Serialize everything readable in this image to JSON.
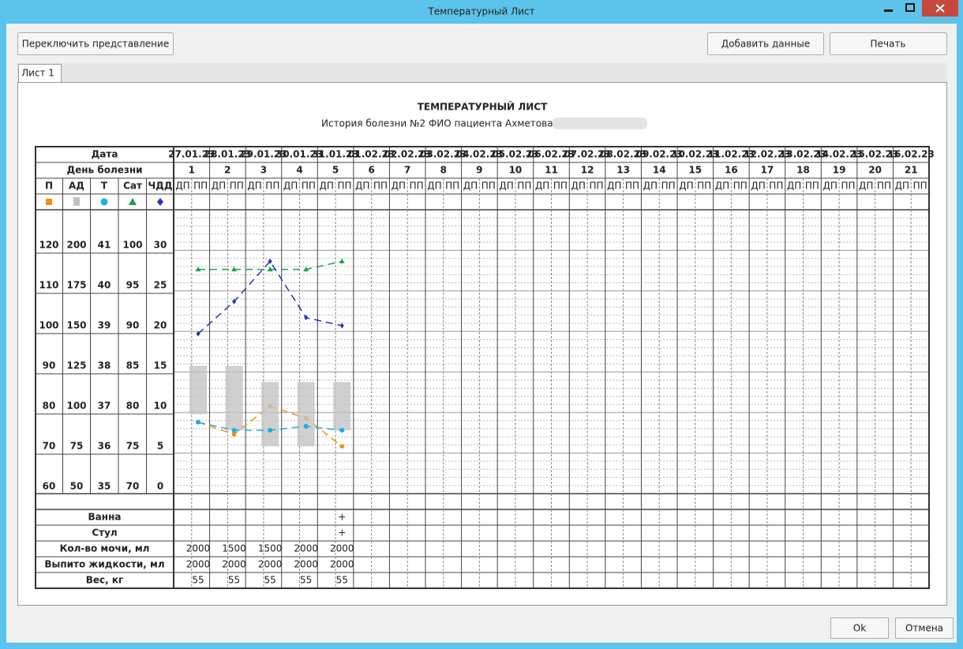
{
  "window": {
    "title": "Температурный Лист"
  },
  "toolbar": {
    "switch_view": "Переключить представление",
    "add_data": "Добавить данные",
    "print": "Печать"
  },
  "tabs": [
    "Лист 1"
  ],
  "chart_data": {
    "type": "line",
    "title": "ТЕМПЕРАТУРНЫЙ ЛИСТ",
    "subtitle": "История болезни №2 ФИО пациента Ахметова",
    "date_label": "Дата",
    "day_label": "День болезни",
    "categories": [
      "27.01.23",
      "28.01.23",
      "29.01.23",
      "30.01.23",
      "31.01.23",
      "01.02.23",
      "02.02.23",
      "03.02.23",
      "04.02.23",
      "05.02.23",
      "06.02.23",
      "07.02.23",
      "08.02.23",
      "09.02.23",
      "10.02.23",
      "11.02.23",
      "12.02.23",
      "13.02.23",
      "14.02.23",
      "15.02.23",
      "16.02.23"
    ],
    "days": [
      1,
      2,
      3,
      4,
      5,
      6,
      7,
      8,
      9,
      10,
      11,
      12,
      13,
      14,
      15,
      16,
      17,
      18,
      19,
      20,
      21
    ],
    "half_labels": [
      "ДП",
      "ПП"
    ],
    "series": [
      {
        "name": "П",
        "color": "#f0900a",
        "marker": "square",
        "ticks": [
          120,
          110,
          100,
          90,
          80,
          70,
          60
        ],
        "values": [
          76,
          73,
          80,
          77,
          70,
          null,
          null,
          null,
          null,
          null,
          null,
          null,
          null,
          null,
          null,
          null,
          null,
          null,
          null,
          null,
          null
        ]
      },
      {
        "name": "АД",
        "color": "#c4c4c4",
        "marker": "range",
        "ticks": [
          200,
          175,
          150,
          125,
          100,
          75,
          50
        ],
        "values": [
          125,
          125,
          115,
          115,
          115,
          null,
          null,
          null,
          null,
          null,
          null,
          null,
          null,
          null,
          null,
          null,
          null,
          null,
          null,
          null,
          null
        ],
        "low_values": [
          95,
          85,
          75,
          75,
          85,
          null,
          null,
          null,
          null,
          null,
          null,
          null,
          null,
          null,
          null,
          null,
          null,
          null,
          null,
          null,
          null
        ]
      },
      {
        "name": "Т",
        "color": "#1ab0e0",
        "marker": "circle",
        "ticks": [
          41,
          40,
          39,
          38,
          37,
          36,
          35
        ],
        "values": [
          36.6,
          36.4,
          36.4,
          36.5,
          36.4,
          null,
          null,
          null,
          null,
          null,
          null,
          null,
          null,
          null,
          null,
          null,
          null,
          null,
          null,
          null,
          null
        ]
      },
      {
        "name": "Сат",
        "color": "#1aa34a",
        "marker": "triangle",
        "ticks": [
          100,
          95,
          90,
          85,
          80,
          75,
          70
        ],
        "values": [
          97,
          97,
          97,
          97,
          98,
          null,
          null,
          null,
          null,
          null,
          null,
          null,
          null,
          null,
          null,
          null,
          null,
          null,
          null,
          null,
          null
        ]
      },
      {
        "name": "ЧДД",
        "color": "#2233cc",
        "marker": "diamond",
        "ticks": [
          30,
          25,
          20,
          15,
          10,
          5,
          0
        ],
        "values": [
          19,
          23,
          28,
          21,
          20,
          null,
          null,
          null,
          null,
          null,
          null,
          null,
          null,
          null,
          null,
          null,
          null,
          null,
          null,
          null,
          null
        ]
      }
    ],
    "rows": [
      {
        "label": "Ванна",
        "values": [
          null,
          null,
          null,
          null,
          "+",
          null,
          null,
          null,
          null,
          null,
          null,
          null,
          null,
          null,
          null,
          null,
          null,
          null,
          null,
          null,
          null
        ]
      },
      {
        "label": "Стул",
        "values": [
          null,
          null,
          null,
          null,
          "+",
          null,
          null,
          null,
          null,
          null,
          null,
          null,
          null,
          null,
          null,
          null,
          null,
          null,
          null,
          null,
          null
        ]
      },
      {
        "label": "Кол-во мочи, мл",
        "values": [
          2000,
          1500,
          1500,
          2000,
          2000,
          null,
          null,
          null,
          null,
          null,
          null,
          null,
          null,
          null,
          null,
          null,
          null,
          null,
          null,
          null,
          null
        ]
      },
      {
        "label": "Выпито жидкости, мл",
        "values": [
          2000,
          2000,
          2000,
          2000,
          2000,
          null,
          null,
          null,
          null,
          null,
          null,
          null,
          null,
          null,
          null,
          null,
          null,
          null,
          null,
          null,
          null
        ]
      },
      {
        "label": "Вес, кг",
        "values": [
          55,
          55,
          55,
          55,
          55,
          null,
          null,
          null,
          null,
          null,
          null,
          null,
          null,
          null,
          null,
          null,
          null,
          null,
          null,
          null,
          null
        ]
      }
    ]
  },
  "footer": {
    "ok": "Ok",
    "cancel": "Отмена"
  }
}
